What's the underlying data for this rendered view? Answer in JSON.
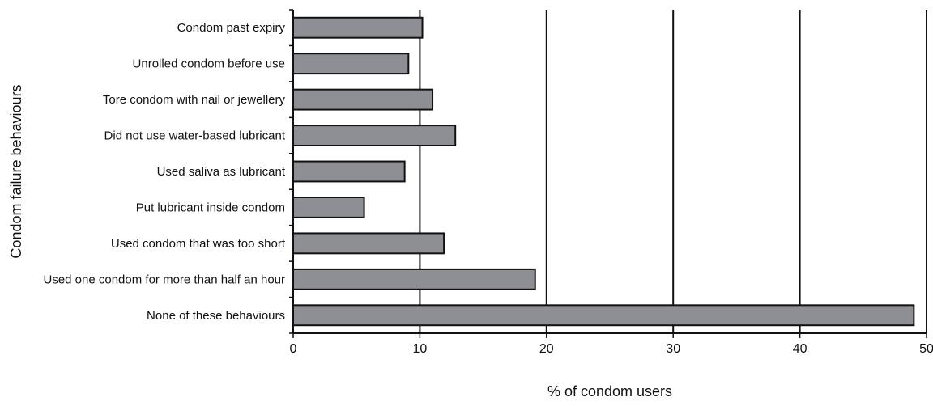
{
  "chart_data": {
    "type": "bar",
    "orientation": "horizontal",
    "title": "",
    "xlabel": "% of condom users",
    "ylabel": "Condom failure behaviours",
    "xlim": [
      0,
      50
    ],
    "xticks": [
      0,
      10,
      20,
      30,
      40,
      50
    ],
    "grid": "vertical lines at x ticks",
    "legend": "none",
    "categories": [
      "Condom past expiry",
      "Unrolled condom before use",
      "Tore condom with nail or jewellery",
      "Did not use water-based lubricant",
      "Used saliva as lubricant",
      "Put lubricant inside condom",
      "Used condom that was too short",
      "Used one condom for more than half an hour",
      "None of these behaviours"
    ],
    "values": [
      10.2,
      9.1,
      11.0,
      12.8,
      8.8,
      5.6,
      11.9,
      19.1,
      49.0
    ],
    "colors": {
      "bar_fill": "#8d8f94",
      "bar_stroke": "#111111",
      "axis": "#111111",
      "grid": "#111111"
    }
  }
}
